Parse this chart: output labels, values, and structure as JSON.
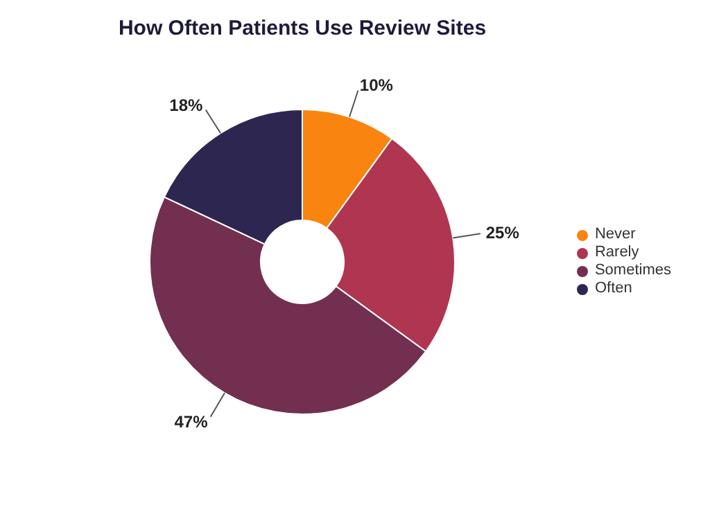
{
  "chart_data": {
    "type": "donut",
    "title": "How Often Patients Use Review Sites",
    "categories": [
      "Never",
      "Rarely",
      "Sometimes",
      "Often"
    ],
    "values": [
      10,
      25,
      47,
      18
    ],
    "value_labels": [
      "10%",
      "25%",
      "47%",
      "18%"
    ],
    "colors": [
      "#f98410",
      "#b03550",
      "#732f4f",
      "#2c2650"
    ],
    "legend": "right"
  }
}
